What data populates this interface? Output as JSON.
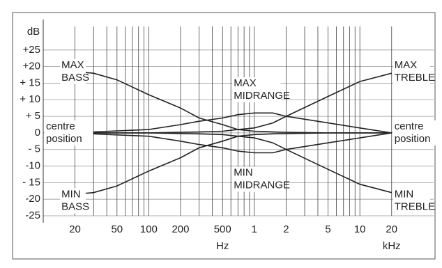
{
  "chart_data": {
    "type": "line",
    "y_label": "dB",
    "x_unit_low": "Hz",
    "x_unit_high": "kHz",
    "log_x": true,
    "grid": true,
    "xlim": [
      10,
      50000
    ],
    "ylim": [
      -25,
      30
    ],
    "xticks": [
      20,
      50,
      100,
      200,
      500,
      {
        "value": 1000,
        "label": "1"
      },
      {
        "value": 2000,
        "label": "2"
      },
      {
        "value": 5000,
        "label": "5"
      },
      {
        "value": 10000,
        "label": "10"
      },
      {
        "value": 20000,
        "label": "20"
      }
    ],
    "xgrid": [
      20,
      30,
      40,
      50,
      60,
      70,
      80,
      90,
      100,
      200,
      300,
      400,
      500,
      600,
      700,
      800,
      900,
      1000,
      2000,
      3000,
      4000,
      5000,
      6000,
      7000,
      8000,
      9000,
      10000,
      20000
    ],
    "yticks": [
      {
        "value": 25,
        "label": "+25"
      },
      {
        "value": 20,
        "label": "+20"
      },
      {
        "value": 15,
        "label": "+ 15"
      },
      {
        "value": 10,
        "label": "+ 10"
      },
      {
        "value": 5,
        "label": "+ 5"
      },
      0,
      {
        "value": -5,
        "label": "- 5"
      },
      {
        "value": -10,
        "label": "-10"
      },
      {
        "value": -15,
        "label": "- 15"
      },
      {
        "value": -20,
        "label": "-20"
      },
      {
        "value": -25,
        "label": "-25"
      }
    ],
    "x": [
      20,
      30,
      50,
      100,
      200,
      300,
      500,
      700,
      1000,
      1500,
      2000,
      5000,
      10000,
      20000
    ],
    "series": [
      {
        "name": "max bass",
        "color": "#222",
        "values": [
          18.5,
          18,
          16,
          11.5,
          7.5,
          4.5,
          2.5,
          1,
          0.5,
          0.3,
          0.2,
          0,
          0,
          0
        ]
      },
      {
        "name": "min bass",
        "color": "#222",
        "values": [
          -18.5,
          -18,
          -16,
          -11.5,
          -7.5,
          -4.5,
          -2.5,
          -1,
          -0.5,
          -0.3,
          -0.2,
          0,
          0,
          0
        ]
      },
      {
        "name": "max treble",
        "color": "#222",
        "values": [
          0,
          0,
          0,
          0,
          0.2,
          0.3,
          0.5,
          1,
          1.5,
          3,
          5,
          11,
          15.5,
          18
        ]
      },
      {
        "name": "min treble",
        "color": "#222",
        "values": [
          0,
          0,
          0,
          0,
          -0.2,
          -0.3,
          -0.5,
          -1,
          -1.5,
          -3,
          -5,
          -11,
          -15.5,
          -18
        ]
      },
      {
        "name": "max midrange",
        "color": "#222",
        "values": [
          0,
          0.3,
          0.6,
          1,
          2.5,
          3.5,
          4.5,
          5.5,
          6,
          6,
          5,
          3,
          1.5,
          0
        ]
      },
      {
        "name": "min midrange",
        "color": "#222",
        "values": [
          0,
          -0.3,
          -0.6,
          -1,
          -2.5,
          -3.5,
          -4.5,
          -5.5,
          -6,
          -6,
          -5,
          -3,
          -1.5,
          0
        ]
      }
    ],
    "annotations": [
      {
        "lines": [
          "MAX",
          "BASS"
        ],
        "x": 14,
        "y": 18.5,
        "anchor": "start"
      },
      {
        "lines": [
          "MIN",
          "BASS"
        ],
        "x": 14,
        "y": -20.5,
        "anchor": "start"
      },
      {
        "lines": [
          "MAX",
          "TREBLE"
        ],
        "x": 20000,
        "y": 18.5,
        "anchor": "start"
      },
      {
        "lines": [
          "MIN",
          "TREBLE"
        ],
        "x": 20000,
        "y": -20.5,
        "anchor": "start"
      },
      {
        "lines": [
          "MAX",
          "MIDRANGE"
        ],
        "x": 600,
        "y": 13,
        "anchor": "start"
      },
      {
        "lines": [
          "MIN",
          "MIDRANGE"
        ],
        "x": 600,
        "y": -14,
        "anchor": "start"
      },
      {
        "lines": [
          "centre",
          "position"
        ],
        "x": 10,
        "y": 0,
        "anchor": "start"
      },
      {
        "lines": [
          "centre",
          "position"
        ],
        "x": 20000,
        "y": 0,
        "anchor": "start"
      }
    ]
  }
}
